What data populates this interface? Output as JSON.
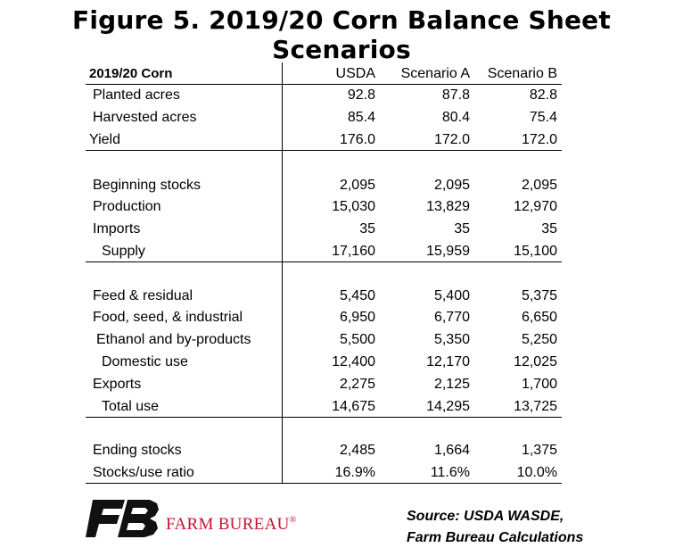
{
  "title": "Figure 5. 2019/20 Corn Balance Sheet Scenarios",
  "table": {
    "header": {
      "label": "2019/20 Corn",
      "cols": [
        "USDA",
        "Scenario A",
        "Scenario B"
      ]
    },
    "rows": [
      {
        "label": "Planted acres",
        "values": [
          "92.8",
          "87.8",
          "82.8"
        ]
      },
      {
        "label": "Harvested acres",
        "values": [
          "85.4",
          "80.4",
          "75.4"
        ]
      },
      {
        "label": "Yield",
        "values": [
          "176.0",
          "172.0",
          "172.0"
        ]
      },
      {
        "label": "Beginning stocks",
        "values": [
          "2,095",
          "2,095",
          "2,095"
        ]
      },
      {
        "label": "Production",
        "values": [
          "15,030",
          "13,829",
          "12,970"
        ]
      },
      {
        "label": "Imports",
        "values": [
          "35",
          "35",
          "35"
        ]
      },
      {
        "label": "Supply",
        "values": [
          "17,160",
          "15,959",
          "15,100"
        ]
      },
      {
        "label": "Feed & residual",
        "values": [
          "5,450",
          "5,400",
          "5,375"
        ]
      },
      {
        "label": "Food, seed, & industrial",
        "values": [
          "6,950",
          "6,770",
          "6,650"
        ]
      },
      {
        "label": "Ethanol and by-products",
        "values": [
          "5,500",
          "5,350",
          "5,250"
        ]
      },
      {
        "label": "Domestic use",
        "values": [
          "12,400",
          "12,170",
          "12,025"
        ]
      },
      {
        "label": "Exports",
        "values": [
          "2,275",
          "2,125",
          "1,700"
        ]
      },
      {
        "label": "Total use",
        "values": [
          "14,675",
          "14,295",
          "13,725"
        ]
      },
      {
        "label": "Ending stocks",
        "values": [
          "2,485",
          "1,664",
          "1,375"
        ]
      },
      {
        "label": "Stocks/use ratio",
        "values": [
          "16.9%",
          "11.6%",
          "10.0%"
        ]
      }
    ]
  },
  "logo": {
    "brand": "FARM BUREAU",
    "mark": "®",
    "color": "#c8102e"
  },
  "source": {
    "line1": "Source: USDA WASDE,",
    "line2": "Farm Bureau Calculations"
  }
}
